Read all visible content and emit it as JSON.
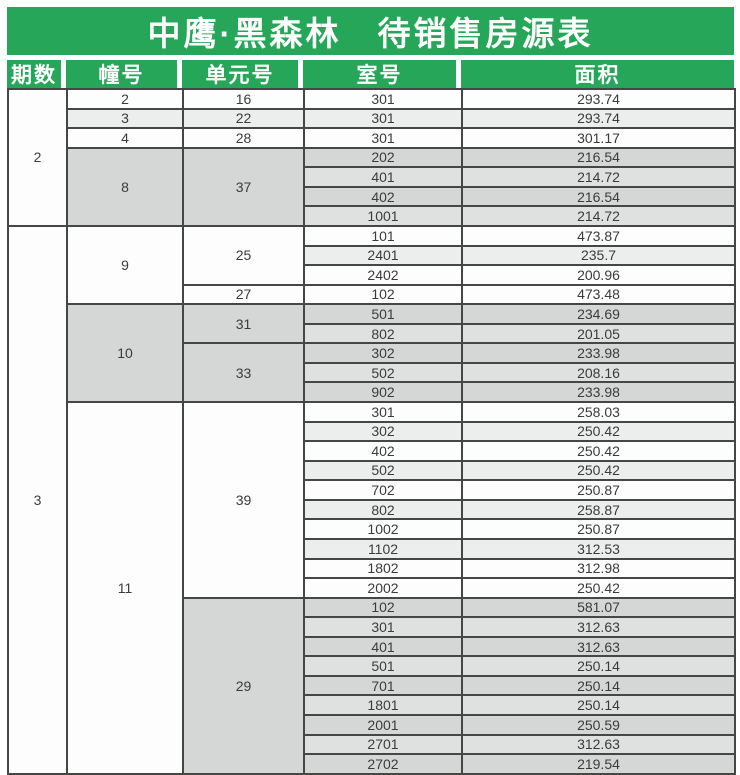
{
  "title": "中鹰·黑森林　待销售房源表",
  "header": {
    "columns": [
      "期数",
      "幢号",
      "单元号",
      "室号",
      "面积"
    ]
  },
  "colors": {
    "header_green": "#26a658",
    "border_dark": "#454745",
    "row_white": "#fdfdfd",
    "row_light_gray": "#eceeed",
    "row_gray": "#d5d7d6",
    "row_gray_light": "#dfe1e0",
    "header_text": "#ffffff",
    "body_text": "#3a3c3a"
  },
  "phases": [
    {
      "phase": "2",
      "shade": "w",
      "buildings": [
        {
          "building": "2",
          "shade": "w",
          "units": [
            {
              "unit": "16",
              "shade": "w",
              "rooms": [
                {
                  "room": "301",
                  "area": "293.74",
                  "shade": "w"
                }
              ]
            }
          ]
        },
        {
          "building": "3",
          "shade": "l",
          "units": [
            {
              "unit": "22",
              "shade": "l",
              "rooms": [
                {
                  "room": "301",
                  "area": "293.74",
                  "shade": "l"
                }
              ]
            }
          ]
        },
        {
          "building": "4",
          "shade": "w",
          "units": [
            {
              "unit": "28",
              "shade": "w",
              "rooms": [
                {
                  "room": "301",
                  "area": "301.17",
                  "shade": "w"
                }
              ]
            }
          ]
        },
        {
          "building": "8",
          "shade": "g",
          "units": [
            {
              "unit": "37",
              "shade": "g",
              "rooms": [
                {
                  "room": "202",
                  "area": "216.54",
                  "shade": "g"
                },
                {
                  "room": "401",
                  "area": "214.72",
                  "shade": "gl"
                },
                {
                  "room": "402",
                  "area": "216.54",
                  "shade": "g"
                },
                {
                  "room": "1001",
                  "area": "214.72",
                  "shade": "gl"
                }
              ]
            }
          ]
        }
      ]
    },
    {
      "phase": "3",
      "shade": "w",
      "buildings": [
        {
          "building": "9",
          "shade": "w",
          "units": [
            {
              "unit": "25",
              "shade": "w",
              "rooms": [
                {
                  "room": "101",
                  "area": "473.87",
                  "shade": "w"
                },
                {
                  "room": "2401",
                  "area": "235.7",
                  "shade": "l"
                },
                {
                  "room": "2402",
                  "area": "200.96",
                  "shade": "w"
                }
              ]
            },
            {
              "unit": "27",
              "shade": "w",
              "rooms": [
                {
                  "room": "102",
                  "area": "473.48",
                  "shade": "w"
                }
              ]
            }
          ]
        },
        {
          "building": "10",
          "shade": "g",
          "units": [
            {
              "unit": "31",
              "shade": "g",
              "rooms": [
                {
                  "room": "501",
                  "area": "234.69",
                  "shade": "g"
                },
                {
                  "room": "802",
                  "area": "201.05",
                  "shade": "gl"
                }
              ]
            },
            {
              "unit": "33",
              "shade": "g",
              "rooms": [
                {
                  "room": "302",
                  "area": "233.98",
                  "shade": "g"
                },
                {
                  "room": "502",
                  "area": "208.16",
                  "shade": "gl"
                },
                {
                  "room": "902",
                  "area": "233.98",
                  "shade": "g"
                }
              ]
            }
          ]
        },
        {
          "building": "11",
          "shade": "w",
          "units": [
            {
              "unit": "39",
              "shade": "w",
              "rooms": [
                {
                  "room": "301",
                  "area": "258.03",
                  "shade": "w"
                },
                {
                  "room": "302",
                  "area": "250.42",
                  "shade": "l"
                },
                {
                  "room": "402",
                  "area": "250.42",
                  "shade": "w"
                },
                {
                  "room": "502",
                  "area": "250.42",
                  "shade": "l"
                },
                {
                  "room": "702",
                  "area": "250.87",
                  "shade": "w"
                },
                {
                  "room": "802",
                  "area": "258.87",
                  "shade": "l"
                },
                {
                  "room": "1002",
                  "area": "250.87",
                  "shade": "w"
                },
                {
                  "room": "1102",
                  "area": "312.53",
                  "shade": "l"
                },
                {
                  "room": "1802",
                  "area": "312.98",
                  "shade": "w"
                },
                {
                  "room": "2002",
                  "area": "250.42",
                  "shade": "w"
                }
              ]
            },
            {
              "unit": "29",
              "shade": "g",
              "rooms": [
                {
                  "room": "102",
                  "area": "581.07",
                  "shade": "g"
                },
                {
                  "room": "301",
                  "area": "312.63",
                  "shade": "gl"
                },
                {
                  "room": "401",
                  "area": "312.63",
                  "shade": "g"
                },
                {
                  "room": "501",
                  "area": "250.14",
                  "shade": "gl"
                },
                {
                  "room": "701",
                  "area": "250.14",
                  "shade": "g"
                },
                {
                  "room": "1801",
                  "area": "250.14",
                  "shade": "gl"
                },
                {
                  "room": "2001",
                  "area": "250.59",
                  "shade": "g"
                },
                {
                  "room": "2701",
                  "area": "312.63",
                  "shade": "gl"
                },
                {
                  "room": "2702",
                  "area": "219.54",
                  "shade": "g"
                }
              ]
            }
          ]
        }
      ]
    }
  ]
}
